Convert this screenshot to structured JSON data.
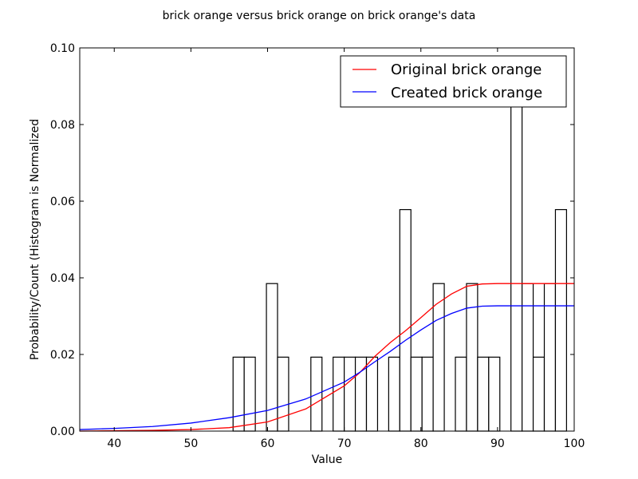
{
  "chart_data": {
    "type": "histogram_with_lines",
    "title": "brick orange versus brick orange on brick orange's data",
    "xlabel": "Value",
    "ylabel": "Probability/Count (Histogram is Normalized",
    "xlim": [
      35.5,
      100
    ],
    "ylim": [
      0,
      0.1
    ],
    "xticks": [
      40,
      50,
      60,
      70,
      80,
      90,
      100
    ],
    "yticks": [
      0.0,
      0.02,
      0.04,
      0.06,
      0.08,
      0.1
    ],
    "ytick_labels": [
      "0.00",
      "0.02",
      "0.04",
      "0.06",
      "0.08",
      "0.10"
    ],
    "grid": false,
    "legend_position": "top-right",
    "histogram": {
      "bin_width": 1.45,
      "bins": [
        {
          "start": 55.5,
          "value": 0.0193
        },
        {
          "start": 56.95,
          "value": 0.0193
        },
        {
          "start": 59.85,
          "value": 0.0385
        },
        {
          "start": 61.3,
          "value": 0.0193
        },
        {
          "start": 65.65,
          "value": 0.0193
        },
        {
          "start": 68.55,
          "value": 0.0193
        },
        {
          "start": 70.0,
          "value": 0.0193
        },
        {
          "start": 71.45,
          "value": 0.0193
        },
        {
          "start": 72.9,
          "value": 0.0193
        },
        {
          "start": 75.8,
          "value": 0.0193
        },
        {
          "start": 77.25,
          "value": 0.0578
        },
        {
          "start": 78.7,
          "value": 0.0193
        },
        {
          "start": 80.15,
          "value": 0.0193
        },
        {
          "start": 81.6,
          "value": 0.0385
        },
        {
          "start": 84.5,
          "value": 0.0193
        },
        {
          "start": 85.95,
          "value": 0.0385
        },
        {
          "start": 87.4,
          "value": 0.0193
        },
        {
          "start": 88.85,
          "value": 0.0193
        },
        {
          "start": 91.75,
          "value": 0.0963
        },
        {
          "start": 93.2,
          "value": 0.0385
        },
        {
          "start": 94.65,
          "value": 0.0193
        },
        {
          "start": 96.1,
          "value": 0.0385
        },
        {
          "start": 97.55,
          "value": 0.0578
        }
      ]
    },
    "series": [
      {
        "name": "Original brick orange",
        "color": "#ff0000",
        "points": [
          [
            35.5,
            0.0
          ],
          [
            40,
            0.0001
          ],
          [
            45,
            0.0002
          ],
          [
            50,
            0.0004
          ],
          [
            55,
            0.0009
          ],
          [
            60,
            0.0024
          ],
          [
            65,
            0.0058
          ],
          [
            70,
            0.0118
          ],
          [
            72,
            0.0152
          ],
          [
            74,
            0.0195
          ],
          [
            76,
            0.0231
          ],
          [
            78,
            0.0262
          ],
          [
            80,
            0.0296
          ],
          [
            82,
            0.0331
          ],
          [
            84,
            0.0358
          ],
          [
            86,
            0.0378
          ],
          [
            88,
            0.0384
          ],
          [
            90,
            0.0385
          ],
          [
            95,
            0.0385
          ],
          [
            100,
            0.0385
          ]
        ]
      },
      {
        "name": "Created brick orange",
        "color": "#0000ff",
        "points": [
          [
            35.5,
            0.0004
          ],
          [
            40,
            0.0007
          ],
          [
            45,
            0.0012
          ],
          [
            50,
            0.0021
          ],
          [
            55,
            0.0035
          ],
          [
            60,
            0.0054
          ],
          [
            65,
            0.0084
          ],
          [
            70,
            0.0128
          ],
          [
            72,
            0.0153
          ],
          [
            74,
            0.0181
          ],
          [
            76,
            0.0208
          ],
          [
            78,
            0.0237
          ],
          [
            80,
            0.0264
          ],
          [
            82,
            0.0289
          ],
          [
            84,
            0.0307
          ],
          [
            86,
            0.0321
          ],
          [
            88,
            0.0326
          ],
          [
            90,
            0.0327
          ],
          [
            95,
            0.0327
          ],
          [
            100,
            0.0327
          ]
        ]
      }
    ]
  }
}
